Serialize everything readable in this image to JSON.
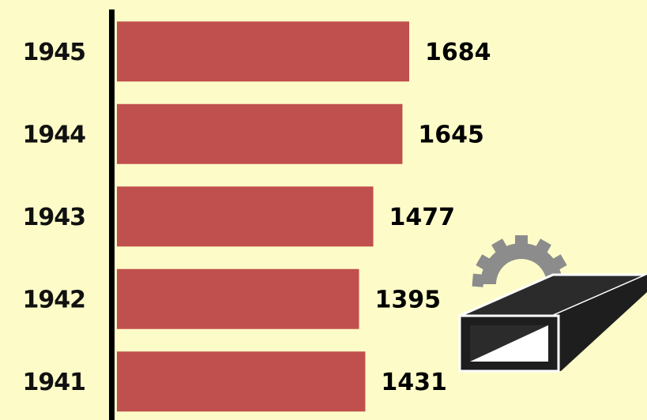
{
  "chart_data": {
    "type": "bar",
    "orientation": "horizontal",
    "categories": [
      "1945",
      "1944",
      "1943",
      "1942",
      "1941"
    ],
    "values": [
      1684,
      1645,
      1477,
      1395,
      1431
    ],
    "color": "#c0504d"
  }
}
